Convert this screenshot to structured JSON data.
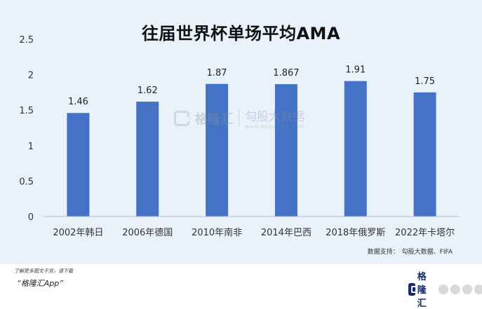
{
  "chart_data": {
    "type": "bar",
    "title": "往届世界杯单场平均AMA",
    "categories": [
      "2002年韩日",
      "2006年德国",
      "2010年南非",
      "2014年巴西",
      "2018年俄罗斯",
      "2022年卡塔尔"
    ],
    "series": [
      {
        "values": [
          1.46,
          1.62,
          1.87,
          1.867,
          1.91,
          1.75
        ]
      }
    ],
    "data_labels": [
      "1.46",
      "1.62",
      "1.87",
      "1.867",
      "1.91",
      "1.75"
    ],
    "ylim": [
      0,
      2.5
    ],
    "yticks": [
      "0",
      "0.5",
      "1",
      "1.5",
      "2",
      "2.5"
    ],
    "ytick_values": [
      0,
      0.5,
      1,
      1.5,
      2,
      2.5
    ],
    "grid": false,
    "bar_color": "#4472c4",
    "background": "#e9f2fb"
  },
  "source": {
    "label": "数据支持：",
    "value": "勾股大数据、FIFA"
  },
  "watermark": {
    "left": "格隆汇",
    "right": "勾股大数据",
    "url": "www.gogudata.com"
  },
  "footer": {
    "note": "了解更多图文干货，请下载",
    "app": "“格隆汇App”",
    "brand": "格隆汇"
  }
}
